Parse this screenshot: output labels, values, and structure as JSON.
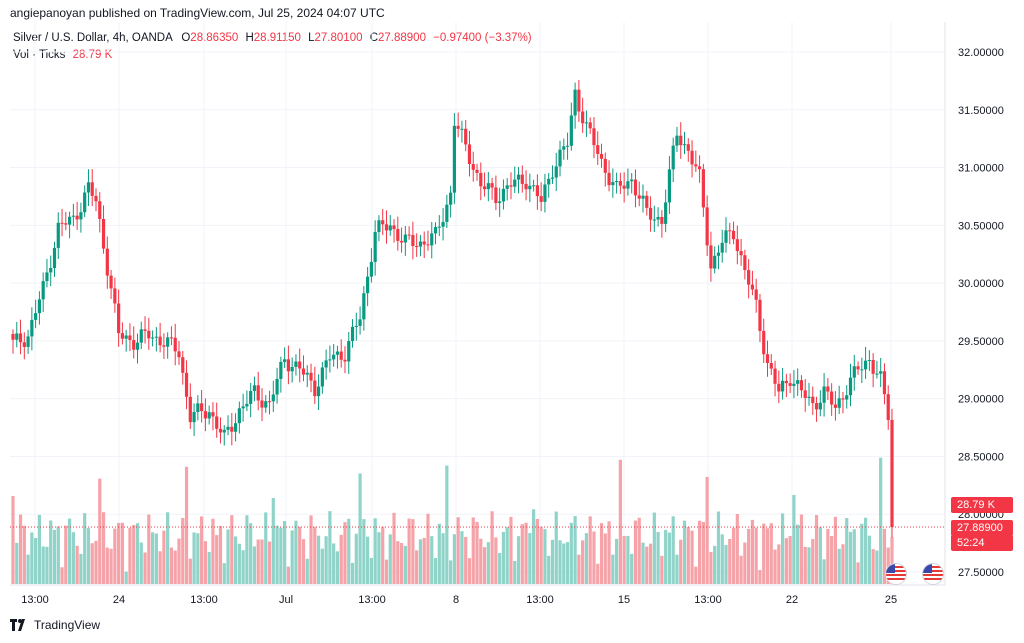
{
  "header": {
    "published": "angiepanoyan published on TradingView.com, Jul 25, 2024 04:07 UTC"
  },
  "legend": {
    "symbol": "Silver / U.S. Dollar, 4h, OANDA",
    "o_label": "O",
    "o_value": "28.86350",
    "h_label": "H",
    "h_value": "28.91150",
    "l_label": "L",
    "l_value": "27.80100",
    "c_label": "C",
    "c_value": "27.88900",
    "change": "−0.97400 (−3.37%)",
    "vol_label": "Vol · Ticks",
    "vol_value": "28.79 K"
  },
  "price_axis": {
    "ticks": [
      "32.00000",
      "31.50000",
      "31.00000",
      "30.50000",
      "30.00000",
      "29.50000",
      "29.00000",
      "28.50000",
      "28.00000",
      "27.50000"
    ]
  },
  "time_axis": {
    "ticks": [
      "13:00",
      "24",
      "13:00",
      "Jul",
      "13:00",
      "8",
      "13:00",
      "15",
      "13:00",
      "22",
      "25"
    ]
  },
  "last_price": {
    "vol_box": "28.79 K",
    "price_box": "27.88900",
    "countdown": "52:24"
  },
  "footer": {
    "brand": "TradingView"
  },
  "colors": {
    "up": "#089981",
    "down": "#f23645",
    "vol_up": "#8fd3c9",
    "vol_down": "#f5a3a8"
  },
  "chart_data": {
    "type": "candlestick",
    "title": "Silver / U.S. Dollar, 4h, OANDA",
    "ylim": [
      27.3,
      32.2
    ],
    "grid": true,
    "key_points": [
      {
        "label": "start",
        "price": 29.47
      },
      {
        "label": "24 high",
        "price": 30.83
      },
      {
        "label": "Jun 27 low",
        "price": 28.62
      },
      {
        "label": "Jul 5 high",
        "price": 31.47
      },
      {
        "label": "Jul 11 high",
        "price": 31.73
      },
      {
        "label": "Jul 22 low",
        "price": 28.81
      },
      {
        "label": "last close",
        "price": 27.889
      }
    ],
    "last": {
      "open": 28.8635,
      "high": 28.9115,
      "low": 27.801,
      "close": 27.889,
      "volume": "28.79 K"
    }
  }
}
